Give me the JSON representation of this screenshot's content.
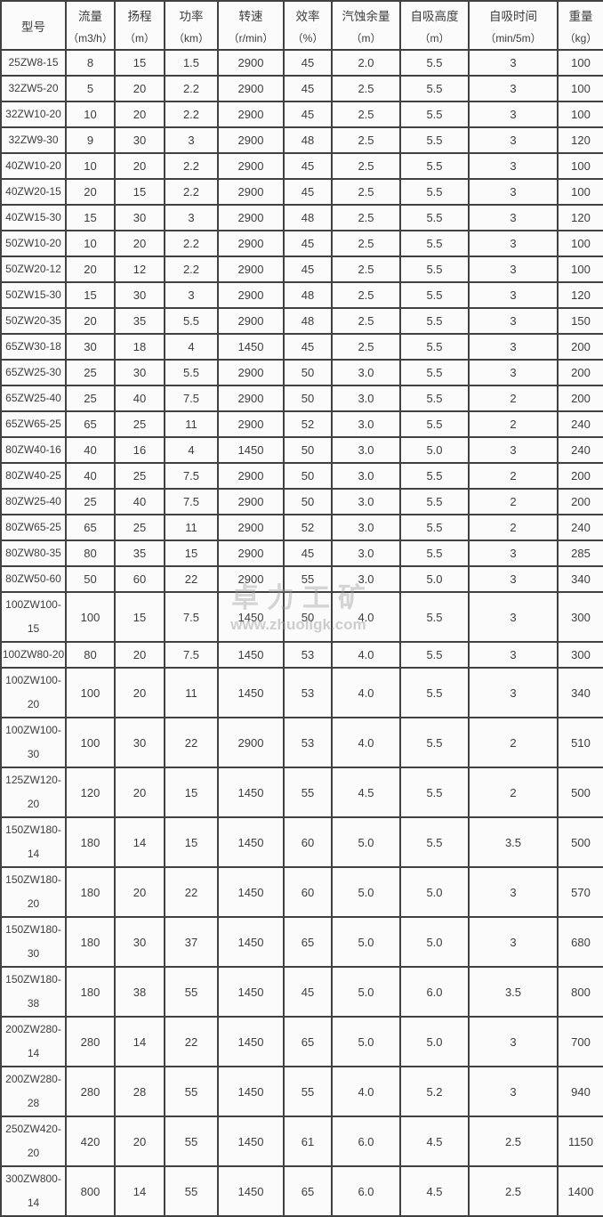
{
  "colors": {
    "table_border": "#414141",
    "cell_background": "#fbfbfb",
    "text": "#3d3d3d",
    "watermark": "#9b9b9b"
  },
  "watermark": {
    "brand": "卓力工矿",
    "url": "www.zhuoligk.com"
  },
  "table": {
    "columns": [
      {
        "title": "型号",
        "unit": ""
      },
      {
        "title": "流量",
        "unit": "（m3/h）"
      },
      {
        "title": "扬程",
        "unit": "（m）"
      },
      {
        "title": "功率",
        "unit": "（km）"
      },
      {
        "title": "转速",
        "unit": "（r/min）"
      },
      {
        "title": "效率",
        "unit": "（%）"
      },
      {
        "title": "汽蚀余量",
        "unit": "（m）"
      },
      {
        "title": "自吸高度",
        "unit": "（m）"
      },
      {
        "title": "自吸时间",
        "unit": "（min/5m）"
      },
      {
        "title": "重量",
        "unit": "（kg）"
      }
    ],
    "rows": [
      [
        "25ZW8-15",
        "8",
        "15",
        "1.5",
        "2900",
        "45",
        "2.0",
        "5.5",
        "3",
        "100"
      ],
      [
        "32ZW5-20",
        "5",
        "20",
        "2.2",
        "2900",
        "45",
        "2.5",
        "5.5",
        "3",
        "100"
      ],
      [
        "32ZW10-20",
        "10",
        "20",
        "2.2",
        "2900",
        "45",
        "2.5",
        "5.5",
        "3",
        "100"
      ],
      [
        "32ZW9-30",
        "9",
        "30",
        "3",
        "2900",
        "48",
        "2.5",
        "5.5",
        "3",
        "120"
      ],
      [
        "40ZW10-20",
        "10",
        "20",
        "2.2",
        "2900",
        "45",
        "2.5",
        "5.5",
        "3",
        "100"
      ],
      [
        "40ZW20-15",
        "20",
        "15",
        "2.2",
        "2900",
        "45",
        "2.5",
        "5.5",
        "3",
        "100"
      ],
      [
        "40ZW15-30",
        "15",
        "30",
        "3",
        "2900",
        "48",
        "2.5",
        "5.5",
        "3",
        "120"
      ],
      [
        "50ZW10-20",
        "10",
        "20",
        "2.2",
        "2900",
        "45",
        "2.5",
        "5.5",
        "3",
        "100"
      ],
      [
        "50ZW20-12",
        "20",
        "12",
        "2.2",
        "2900",
        "45",
        "2.5",
        "5.5",
        "3",
        "100"
      ],
      [
        "50ZW15-30",
        "15",
        "30",
        "3",
        "2900",
        "48",
        "2.5",
        "5.5",
        "3",
        "120"
      ],
      [
        "50ZW20-35",
        "20",
        "35",
        "5.5",
        "2900",
        "48",
        "2.5",
        "5.5",
        "3",
        "150"
      ],
      [
        "65ZW30-18",
        "30",
        "18",
        "4",
        "1450",
        "45",
        "2.5",
        "5.5",
        "3",
        "200"
      ],
      [
        "65ZW25-30",
        "25",
        "30",
        "5.5",
        "2900",
        "50",
        "3.0",
        "5.5",
        "3",
        "200"
      ],
      [
        "65ZW25-40",
        "25",
        "40",
        "7.5",
        "2900",
        "50",
        "3.0",
        "5.5",
        "2",
        "200"
      ],
      [
        "65ZW65-25",
        "65",
        "25",
        "11",
        "2900",
        "52",
        "3.0",
        "5.5",
        "2",
        "240"
      ],
      [
        "80ZW40-16",
        "40",
        "16",
        "4",
        "1450",
        "50",
        "3.0",
        "5.0",
        "3",
        "240"
      ],
      [
        "80ZW40-25",
        "40",
        "25",
        "7.5",
        "2900",
        "50",
        "3.0",
        "5.5",
        "2",
        "200"
      ],
      [
        "80ZW25-40",
        "25",
        "40",
        "7.5",
        "2900",
        "50",
        "3.0",
        "5.5",
        "2",
        "200"
      ],
      [
        "80ZW65-25",
        "65",
        "25",
        "11",
        "2900",
        "52",
        "3.0",
        "5.5",
        "2",
        "240"
      ],
      [
        "80ZW80-35",
        "80",
        "35",
        "15",
        "2900",
        "45",
        "3.0",
        "5.5",
        "3",
        "285"
      ],
      [
        "80ZW50-60",
        "50",
        "60",
        "22",
        "2900",
        "55",
        "3.0",
        "5.0",
        "3",
        "340"
      ],
      [
        "100ZW100-\n15",
        "100",
        "15",
        "7.5",
        "1450",
        "50",
        "4.0",
        "5.5",
        "3",
        "300"
      ],
      [
        "100ZW80-20",
        "80",
        "20",
        "7.5",
        "1450",
        "53",
        "4.0",
        "5.5",
        "3",
        "300"
      ],
      [
        "100ZW100-\n20",
        "100",
        "20",
        "11",
        "1450",
        "53",
        "4.0",
        "5.5",
        "3",
        "340"
      ],
      [
        "100ZW100-\n30",
        "100",
        "30",
        "22",
        "2900",
        "53",
        "4.0",
        "5.5",
        "2",
        "510"
      ],
      [
        "125ZW120-\n20",
        "120",
        "20",
        "15",
        "1450",
        "55",
        "4.5",
        "5.5",
        "2",
        "500"
      ],
      [
        "150ZW180-\n14",
        "180",
        "14",
        "15",
        "1450",
        "60",
        "5.0",
        "5.5",
        "3.5",
        "500"
      ],
      [
        "150ZW180-\n20",
        "180",
        "20",
        "22",
        "1450",
        "60",
        "5.0",
        "5.0",
        "3",
        "570"
      ],
      [
        "150ZW180-\n30",
        "180",
        "30",
        "37",
        "1450",
        "65",
        "5.0",
        "5.0",
        "3",
        "680"
      ],
      [
        "150ZW180-\n38",
        "180",
        "38",
        "55",
        "1450",
        "45",
        "5.0",
        "6.0",
        "3.5",
        "800"
      ],
      [
        "200ZW280-\n14",
        "280",
        "14",
        "22",
        "1450",
        "65",
        "5.0",
        "5.0",
        "3",
        "700"
      ],
      [
        "200ZW280-\n28",
        "280",
        "28",
        "55",
        "1450",
        "55",
        "4.0",
        "5.2",
        "3",
        "940"
      ],
      [
        "250ZW420-\n20",
        "420",
        "20",
        "55",
        "1450",
        "61",
        "6.0",
        "4.5",
        "2.5",
        "1150"
      ],
      [
        "300ZW800-\n14",
        "800",
        "14",
        "55",
        "1450",
        "65",
        "6.0",
        "4.5",
        "2.5",
        "1400"
      ]
    ]
  }
}
